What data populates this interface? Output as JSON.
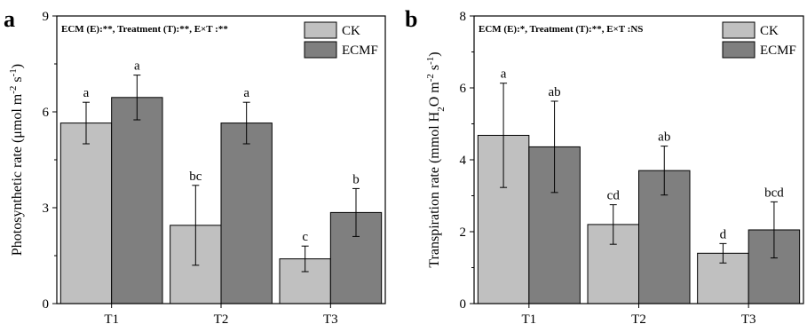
{
  "colors": {
    "CK": "#c0c0c0",
    "ECMF": "#7f7f7f",
    "axis": "#000000"
  },
  "chart_data": [
    {
      "type": "bar",
      "panel": "a",
      "annotation": "ECM (E):**, Treatment (T):**, E×T :**",
      "ylabel": "Photosynthetic rate (μmol m⁻² s⁻¹)",
      "ylim": [
        0,
        9
      ],
      "yticks": [
        0,
        3,
        6,
        9
      ],
      "categories": [
        "T1",
        "T2",
        "T3"
      ],
      "series": [
        {
          "name": "CK",
          "values": [
            5.65,
            2.45,
            1.4
          ],
          "errors": [
            0.65,
            1.25,
            0.4
          ],
          "labels": [
            "a",
            "bc",
            "c"
          ]
        },
        {
          "name": "ECMF",
          "values": [
            6.45,
            5.65,
            2.85
          ],
          "errors": [
            0.7,
            0.65,
            0.75
          ],
          "labels": [
            "a",
            "a",
            "b"
          ]
        }
      ],
      "legend": "top-right"
    },
    {
      "type": "bar",
      "panel": "b",
      "annotation": "ECM (E):*, Treatment (T):**, E×T :NS",
      "ylabel": "Transpiration rate (mmol H₂O m⁻² s⁻¹)",
      "ylim": [
        0,
        8
      ],
      "yticks": [
        0,
        2,
        4,
        6,
        8
      ],
      "categories": [
        "T1",
        "T2",
        "T3"
      ],
      "series": [
        {
          "name": "CK",
          "values": [
            4.68,
            2.2,
            1.4
          ],
          "errors": [
            1.45,
            0.55,
            0.27
          ],
          "labels": [
            "a",
            "cd",
            "d"
          ]
        },
        {
          "name": "ECMF",
          "values": [
            4.36,
            3.7,
            2.05
          ],
          "errors": [
            1.27,
            0.68,
            0.78
          ],
          "labels": [
            "ab",
            "ab",
            "bcd"
          ]
        }
      ],
      "legend": "top-right"
    }
  ]
}
